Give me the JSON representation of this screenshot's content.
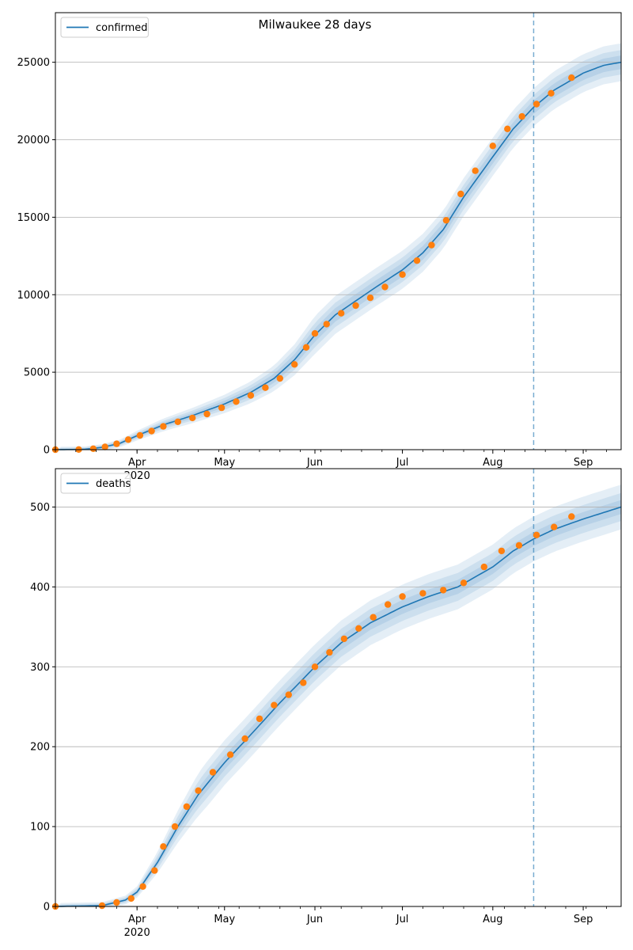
{
  "figure": {
    "title": "Milwaukee 28 days"
  },
  "colors": {
    "model": "#1f77b4",
    "observed": "#ff7f0e",
    "band": "#1f77b4",
    "grid": "#b0b0b0",
    "vline": "#1f77b4"
  },
  "chart_data": [
    {
      "type": "line",
      "title": "Milwaukee 28 days",
      "xlabel": "",
      "ylabel": "",
      "x_axis": {
        "type": "date",
        "range": [
          "2020-03-04",
          "2020-09-14"
        ],
        "major_ticks": [
          {
            "date": "2020-04-01",
            "label": "Apr",
            "sublabel": "2020"
          },
          {
            "date": "2020-05-01",
            "label": "May"
          },
          {
            "date": "2020-06-01",
            "label": "Jun"
          },
          {
            "date": "2020-07-01",
            "label": "Jul"
          },
          {
            "date": "2020-08-01",
            "label": "Aug"
          },
          {
            "date": "2020-09-01",
            "label": "Sep"
          }
        ]
      },
      "ylim": [
        0,
        28200
      ],
      "yticks": [
        0,
        5000,
        10000,
        15000,
        20000,
        25000
      ],
      "ytick_labels": [
        "0",
        "5000",
        "10000",
        "15000",
        "20000",
        "25000"
      ],
      "grid": "y",
      "legend": {
        "position": "top-left",
        "entries": [
          "confirmed"
        ]
      },
      "forecast_start": "2020-08-15",
      "series": [
        {
          "name": "confirmed",
          "kind": "model",
          "points": [
            [
              "2020-03-04",
              0
            ],
            [
              "2020-03-14",
              20
            ],
            [
              "2020-03-20",
              150
            ],
            [
              "2020-03-26",
              400
            ],
            [
              "2020-04-01",
              900
            ],
            [
              "2020-04-10",
              1600
            ],
            [
              "2020-04-20",
              2200
            ],
            [
              "2020-05-01",
              2950
            ],
            [
              "2020-05-10",
              3700
            ],
            [
              "2020-05-18",
              4600
            ],
            [
              "2020-05-25",
              5800
            ],
            [
              "2020-06-01",
              7400
            ],
            [
              "2020-06-08",
              8700
            ],
            [
              "2020-06-15",
              9600
            ],
            [
              "2020-06-22",
              10500
            ],
            [
              "2020-07-01",
              11600
            ],
            [
              "2020-07-08",
              12700
            ],
            [
              "2020-07-15",
              14200
            ],
            [
              "2020-07-22",
              16300
            ],
            [
              "2020-08-01",
              18900
            ],
            [
              "2020-08-08",
              20700
            ],
            [
              "2020-08-15",
              22100
            ],
            [
              "2020-08-22",
              23200
            ],
            [
              "2020-09-01",
              24300
            ],
            [
              "2020-09-08",
              24800
            ],
            [
              "2020-09-14",
              25000
            ]
          ]
        },
        {
          "name": "",
          "kind": "observed",
          "points": [
            [
              "2020-03-04",
              0
            ],
            [
              "2020-03-12",
              10
            ],
            [
              "2020-03-17",
              60
            ],
            [
              "2020-03-21",
              180
            ],
            [
              "2020-03-25",
              380
            ],
            [
              "2020-03-29",
              650
            ],
            [
              "2020-04-02",
              920
            ],
            [
              "2020-04-06",
              1200
            ],
            [
              "2020-04-10",
              1500
            ],
            [
              "2020-04-15",
              1800
            ],
            [
              "2020-04-20",
              2050
            ],
            [
              "2020-04-25",
              2300
            ],
            [
              "2020-04-30",
              2700
            ],
            [
              "2020-05-05",
              3100
            ],
            [
              "2020-05-10",
              3500
            ],
            [
              "2020-05-15",
              4000
            ],
            [
              "2020-05-20",
              4600
            ],
            [
              "2020-05-25",
              5500
            ],
            [
              "2020-05-29",
              6600
            ],
            [
              "2020-06-01",
              7500
            ],
            [
              "2020-06-05",
              8100
            ],
            [
              "2020-06-10",
              8800
            ],
            [
              "2020-06-15",
              9300
            ],
            [
              "2020-06-20",
              9800
            ],
            [
              "2020-06-25",
              10500
            ],
            [
              "2020-07-01",
              11300
            ],
            [
              "2020-07-06",
              12200
            ],
            [
              "2020-07-11",
              13200
            ],
            [
              "2020-07-16",
              14800
            ],
            [
              "2020-07-21",
              16500
            ],
            [
              "2020-07-26",
              18000
            ],
            [
              "2020-08-01",
              19600
            ],
            [
              "2020-08-06",
              20700
            ],
            [
              "2020-08-11",
              21500
            ],
            [
              "2020-08-16",
              22300
            ],
            [
              "2020-08-21",
              23000
            ],
            [
              "2020-08-28",
              24000
            ]
          ]
        }
      ],
      "bands": [
        {
          "inner_relative_width": 0.05
        },
        {
          "inner_relative_width": 0.09
        },
        {
          "inner_relative_width": 0.14
        }
      ]
    },
    {
      "type": "line",
      "title": "",
      "xlabel": "",
      "ylabel": "",
      "x_axis": {
        "type": "date",
        "range": [
          "2020-03-04",
          "2020-09-14"
        ],
        "major_ticks": [
          {
            "date": "2020-04-01",
            "label": "Apr",
            "sublabel": "2020"
          },
          {
            "date": "2020-05-01",
            "label": "May"
          },
          {
            "date": "2020-06-01",
            "label": "Jun"
          },
          {
            "date": "2020-07-01",
            "label": "Jul"
          },
          {
            "date": "2020-08-01",
            "label": "Aug"
          },
          {
            "date": "2020-09-01",
            "label": "Sep"
          }
        ]
      },
      "ylim": [
        0,
        548
      ],
      "yticks": [
        0,
        100,
        200,
        300,
        400,
        500
      ],
      "ytick_labels": [
        "0",
        "100",
        "200",
        "300",
        "400",
        "500"
      ],
      "grid": "y",
      "legend": {
        "position": "top-left",
        "entries": [
          "deaths"
        ]
      },
      "forecast_start": "2020-08-15",
      "series": [
        {
          "name": "deaths",
          "kind": "model",
          "points": [
            [
              "2020-03-04",
              0
            ],
            [
              "2020-03-20",
              1
            ],
            [
              "2020-03-28",
              8
            ],
            [
              "2020-04-01",
              18
            ],
            [
              "2020-04-08",
              55
            ],
            [
              "2020-04-15",
              100
            ],
            [
              "2020-04-22",
              140
            ],
            [
              "2020-05-01",
              180
            ],
            [
              "2020-05-10",
              215
            ],
            [
              "2020-05-20",
              255
            ],
            [
              "2020-06-01",
              300
            ],
            [
              "2020-06-10",
              330
            ],
            [
              "2020-06-20",
              355
            ],
            [
              "2020-07-01",
              375
            ],
            [
              "2020-07-10",
              388
            ],
            [
              "2020-07-20",
              400
            ],
            [
              "2020-08-01",
              425
            ],
            [
              "2020-08-08",
              445
            ],
            [
              "2020-08-15",
              460
            ],
            [
              "2020-08-22",
              472
            ],
            [
              "2020-09-01",
              485
            ],
            [
              "2020-09-14",
              500
            ]
          ]
        },
        {
          "name": "",
          "kind": "observed",
          "points": [
            [
              "2020-03-04",
              0
            ],
            [
              "2020-03-20",
              1
            ],
            [
              "2020-03-25",
              5
            ],
            [
              "2020-03-30",
              10
            ],
            [
              "2020-04-03",
              25
            ],
            [
              "2020-04-07",
              45
            ],
            [
              "2020-04-10",
              75
            ],
            [
              "2020-04-14",
              100
            ],
            [
              "2020-04-18",
              125
            ],
            [
              "2020-04-22",
              145
            ],
            [
              "2020-04-27",
              168
            ],
            [
              "2020-05-03",
              190
            ],
            [
              "2020-05-08",
              210
            ],
            [
              "2020-05-13",
              235
            ],
            [
              "2020-05-18",
              252
            ],
            [
              "2020-05-23",
              265
            ],
            [
              "2020-05-28",
              280
            ],
            [
              "2020-06-01",
              300
            ],
            [
              "2020-06-06",
              318
            ],
            [
              "2020-06-11",
              335
            ],
            [
              "2020-06-16",
              348
            ],
            [
              "2020-06-21",
              362
            ],
            [
              "2020-06-26",
              378
            ],
            [
              "2020-07-01",
              388
            ],
            [
              "2020-07-08",
              392
            ],
            [
              "2020-07-15",
              396
            ],
            [
              "2020-07-22",
              405
            ],
            [
              "2020-07-29",
              425
            ],
            [
              "2020-08-04",
              445
            ],
            [
              "2020-08-10",
              452
            ],
            [
              "2020-08-16",
              465
            ],
            [
              "2020-08-22",
              475
            ],
            [
              "2020-08-28",
              488
            ]
          ]
        }
      ],
      "bands": [
        {
          "inner_relative_width": 0.05
        },
        {
          "inner_relative_width": 0.1
        },
        {
          "inner_relative_width": 0.16
        }
      ]
    }
  ]
}
